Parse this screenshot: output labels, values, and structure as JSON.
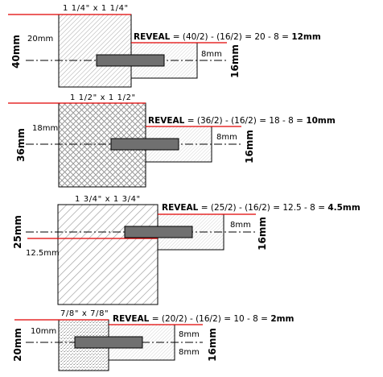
{
  "colors": {
    "cut_line": "#e00000",
    "center_line": "#000000",
    "bar_fill": "#707070",
    "panel_fill": "#f0f0f0"
  },
  "diagrams": [
    {
      "size": "1 1/4\" x 1 1/4\"",
      "half": "20mm",
      "total": "40mm",
      "reveal_word": "REVEAL",
      "reveal_expr": " = (40/2) - (16/2) = 20 - 8 = ",
      "reveal_result": "12mm",
      "panel_half": "8mm",
      "panel_total": "16mm",
      "pattern": "fine-diagonal"
    },
    {
      "size": "1 1/2\" x 1 1/2\"",
      "half": "18mm",
      "total": "36mm",
      "reveal_word": "REVEAL",
      "reveal_expr": " = (36/2) - (16/2) = 18 - 8 = ",
      "reveal_result": "10mm",
      "panel_half": "8mm",
      "panel_total": "16mm",
      "pattern": "crosshatch"
    },
    {
      "size": "1 3/4\" x 1 3/4\"",
      "half": "12.5mm",
      "total": "25mm",
      "reveal_word": "REVEAL",
      "reveal_expr": " = (25/2) - (16/2) = 12.5 - 8 = ",
      "reveal_result": "4.5mm",
      "panel_half": "8mm",
      "panel_total": "16mm",
      "pattern": "wide-diagonal"
    },
    {
      "size": "7/8\" x 7/8\"",
      "half": "10mm",
      "total": "20mm",
      "reveal_word": "REVEAL",
      "reveal_expr": " = (20/2) - (16/2) = 10 - 8 = ",
      "reveal_result": "2mm",
      "panel_half": "8mm",
      "panel_half_2": "8mm",
      "panel_total": "16mm",
      "pattern": "stipple"
    }
  ]
}
